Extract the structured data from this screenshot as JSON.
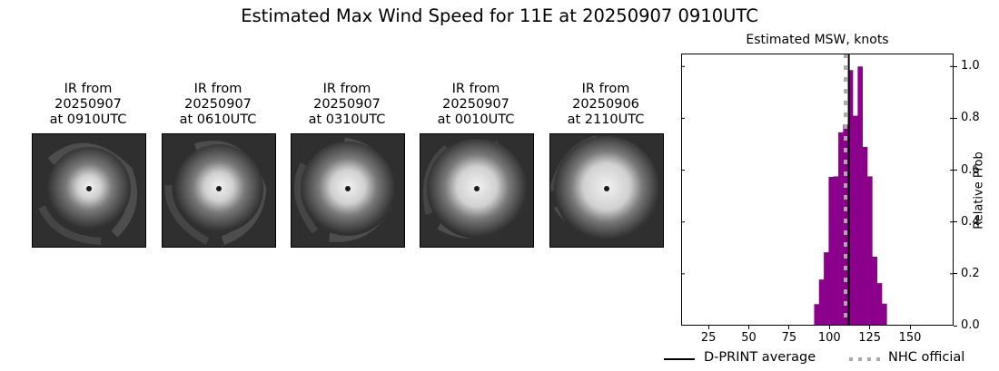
{
  "figure": {
    "title": "Estimated Max Wind Speed for 11E at 20250907 0910UTC"
  },
  "thumbnails": [
    {
      "label_line1": "IR from",
      "label_line2": "20250907",
      "label_line3": "at 0910UTC"
    },
    {
      "label_line1": "IR from",
      "label_line2": "20250907",
      "label_line3": "at 0610UTC"
    },
    {
      "label_line1": "IR from",
      "label_line2": "20250907",
      "label_line3": "at 0310UTC"
    },
    {
      "label_line1": "IR from",
      "label_line2": "20250907",
      "label_line3": "at 0010UTC"
    },
    {
      "label_line1": "IR from",
      "label_line2": "20250906",
      "label_line3": "at 2110UTC"
    }
  ],
  "legend": {
    "dprint_label": "D-PRINT average",
    "nhc_label": "NHC official"
  },
  "colors": {
    "bars": "#8b008b",
    "dprint_line": "#000000",
    "nhc_line": "#aaaaaa"
  },
  "chart_data": {
    "type": "bar",
    "title": "Estimated MSW, knots",
    "xlabel": "",
    "ylabel": "Relative Prob",
    "xlim": [
      8,
      177
    ],
    "ylim": [
      0,
      1.05
    ],
    "xticks": [
      25,
      50,
      75,
      100,
      125,
      150
    ],
    "yticks": [
      0.0,
      0.2,
      0.4,
      0.6,
      0.8,
      1.0
    ],
    "ytick_labels": [
      "0.0",
      "0.2",
      "0.4",
      "0.6",
      "0.8",
      "1.0"
    ],
    "y_axis_position": "right",
    "bin_width": 3,
    "categories": [
      92,
      95,
      98,
      101,
      104,
      107,
      110,
      113,
      116,
      119,
      122,
      125,
      128,
      131
    ],
    "values": [
      0.083,
      0.178,
      0.283,
      0.574,
      0.576,
      0.746,
      0.776,
      0.986,
      0.81,
      1.0,
      0.69,
      0.576,
      0.266,
      0.164
    ],
    "tail_values": [
      0.085
    ],
    "tail_range_knots": [
      15,
      169
    ],
    "tail_level": 0.003,
    "dprint_average_knots": 112,
    "nhc_official_knots": 110,
    "legend": [
      "D-PRINT average",
      "NHC official"
    ],
    "legend_position": "below",
    "grid": false
  }
}
